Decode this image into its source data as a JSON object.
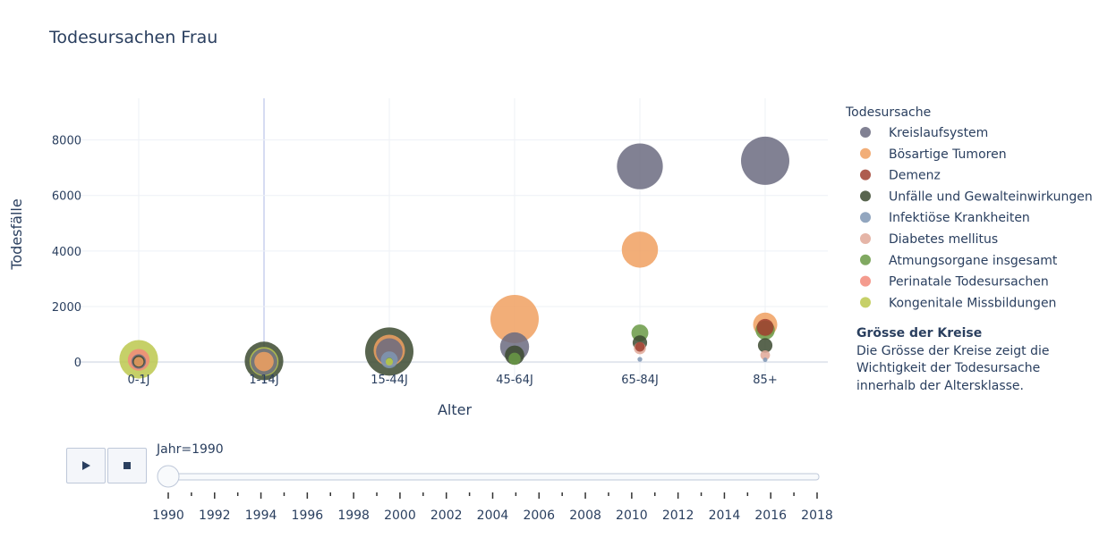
{
  "chart_data": {
    "type": "scatter",
    "title": "Todesursachen Frau",
    "xlabel": "Alter",
    "ylabel": "Todesfälle",
    "categories": [
      "0-1J",
      "1-14J",
      "15-44J",
      "45-64J",
      "65-84J",
      "85+"
    ],
    "y_ticks": [
      "0",
      "2000",
      "4000",
      "6000",
      "8000"
    ],
    "ylim": [
      -800,
      9500
    ],
    "grid": true,
    "legend_position": "right",
    "legend_title": "Todesursache",
    "series": [
      {
        "name": "Kreislaufsystem",
        "color": "#6b6b80",
        "points": [
          {
            "x": "0-1J",
            "y": 20,
            "size": 0.3
          },
          {
            "x": "1-14J",
            "y": 10,
            "size": 0.55
          },
          {
            "x": "15-44J",
            "y": 380,
            "size": 0.55
          },
          {
            "x": "45-64J",
            "y": 550,
            "size": 0.6
          },
          {
            "x": "65-84J",
            "y": 7050,
            "size": 0.95
          },
          {
            "x": "85+",
            "y": 7250,
            "size": 1.0
          }
        ]
      },
      {
        "name": "Bösartige Tumoren",
        "color": "#f0a060",
        "points": [
          {
            "x": "0-1J",
            "y": 10,
            "size": 0.2
          },
          {
            "x": "1-14J",
            "y": 20,
            "size": 0.4
          },
          {
            "x": "15-44J",
            "y": 420,
            "size": 0.65
          },
          {
            "x": "45-64J",
            "y": 1550,
            "size": 1.0
          },
          {
            "x": "65-84J",
            "y": 4050,
            "size": 0.75
          },
          {
            "x": "85+",
            "y": 1350,
            "size": 0.5
          }
        ]
      },
      {
        "name": "Demenz",
        "color": "#a04030",
        "points": [
          {
            "x": "65-84J",
            "y": 550,
            "size": 0.2
          },
          {
            "x": "85+",
            "y": 1250,
            "size": 0.35
          }
        ]
      },
      {
        "name": "Unfälle und Gewalteinwirkungen",
        "color": "#3c4a30",
        "points": [
          {
            "x": "0-1J",
            "y": 20,
            "size": 0.25
          },
          {
            "x": "1-14J",
            "y": 40,
            "size": 0.8
          },
          {
            "x": "15-44J",
            "y": 380,
            "size": 1.0
          },
          {
            "x": "45-64J",
            "y": 250,
            "size": 0.4
          },
          {
            "x": "65-84J",
            "y": 700,
            "size": 0.3
          },
          {
            "x": "85+",
            "y": 600,
            "size": 0.3
          }
        ]
      },
      {
        "name": "Infektiöse Krankheiten",
        "color": "#7f96b4",
        "points": [
          {
            "x": "15-44J",
            "y": 80,
            "size": 0.35
          },
          {
            "x": "65-84J",
            "y": 100,
            "size": 0.1
          },
          {
            "x": "85+",
            "y": 80,
            "size": 0.08
          }
        ]
      },
      {
        "name": "Diabetes mellitus",
        "color": "#e0a898",
        "points": [
          {
            "x": "65-84J",
            "y": 500,
            "size": 0.25
          },
          {
            "x": "85+",
            "y": 250,
            "size": 0.2
          }
        ]
      },
      {
        "name": "Atmungsorgane insgesamt",
        "color": "#6a9a45",
        "points": [
          {
            "x": "15-44J",
            "y": 30,
            "size": 0.15
          },
          {
            "x": "45-64J",
            "y": 120,
            "size": 0.25
          },
          {
            "x": "65-84J",
            "y": 1050,
            "size": 0.35
          },
          {
            "x": "85+",
            "y": 1150,
            "size": 0.4
          }
        ]
      },
      {
        "name": "Perinatale Todesursachen",
        "color": "#f28a7a",
        "points": [
          {
            "x": "0-1J",
            "y": 80,
            "size": 0.45
          }
        ]
      },
      {
        "name": "Kongenitale Missbildungen",
        "color": "#bcc84e",
        "points": [
          {
            "x": "0-1J",
            "y": 100,
            "size": 0.8
          },
          {
            "x": "1-14J",
            "y": 20,
            "size": 0.6
          },
          {
            "x": "15-44J",
            "y": 10,
            "size": 0.15
          }
        ]
      }
    ]
  },
  "note": {
    "title": "Grösse der Kreise",
    "lines": [
      "Die Grösse der Kreise zeigt die",
      "Wichtigkeit der Todesursache",
      "innerhalb der Altersklasse."
    ]
  },
  "slider": {
    "current_label": "Jahr=1990",
    "min": 1990,
    "max": 2018,
    "value": 1990,
    "tick_labels": [
      "1990",
      "1992",
      "1994",
      "1996",
      "1998",
      "2000",
      "2002",
      "2004",
      "2006",
      "2008",
      "2010",
      "2012",
      "2014",
      "2016",
      "2018"
    ]
  },
  "controls": {
    "play_icon": "play-icon",
    "stop_icon": "stop-icon"
  }
}
